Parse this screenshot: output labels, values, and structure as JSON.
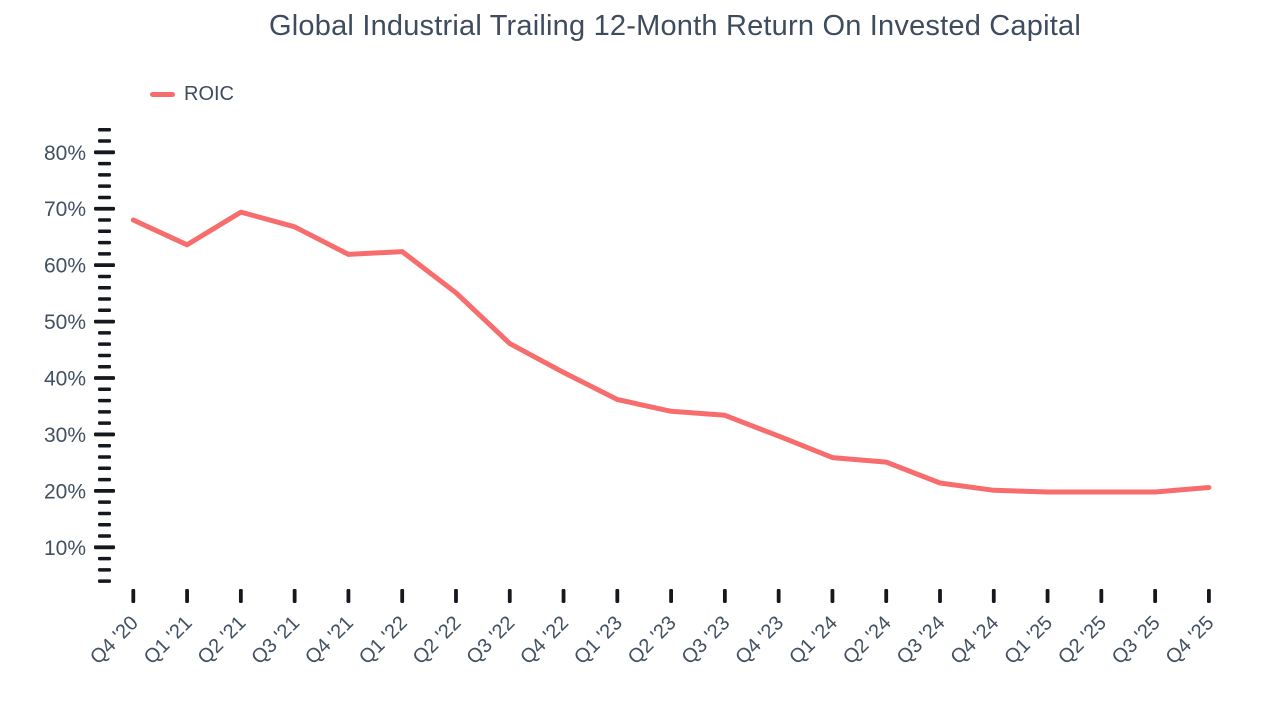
{
  "chart_data": {
    "type": "line",
    "title": "Global Industrial Trailing 12-Month Return On Invested Capital",
    "categories": [
      "Q4 '20",
      "Q1 '21",
      "Q2 '21",
      "Q3 '21",
      "Q4 '21",
      "Q1 '22",
      "Q2 '22",
      "Q3 '22",
      "Q4 '22",
      "Q1 '23",
      "Q2 '23",
      "Q3 '23",
      "Q4 '23",
      "Q1 '24",
      "Q2 '24",
      "Q3 '24",
      "Q4 '24",
      "Q1 '25",
      "Q2 '25",
      "Q3 '25",
      "Q4 '25"
    ],
    "series": [
      {
        "name": "ROIC",
        "color": "#f76d6d",
        "values": [
          68.0,
          63.6,
          69.4,
          66.8,
          61.9,
          62.4,
          55.1,
          46.1,
          41.0,
          36.2,
          34.1,
          33.4,
          29.7,
          25.9,
          25.1,
          21.4,
          20.1,
          19.8,
          19.8,
          19.8,
          20.6
        ]
      }
    ],
    "y_ticks": [
      {
        "value": 80,
        "label": "80%"
      },
      {
        "value": 70,
        "label": "70%"
      },
      {
        "value": 60,
        "label": "60%"
      },
      {
        "value": 50,
        "label": "50%"
      },
      {
        "value": 40,
        "label": "40%"
      },
      {
        "value": 30,
        "label": "30%"
      },
      {
        "value": 20,
        "label": "20%"
      },
      {
        "value": 10,
        "label": "10%"
      }
    ],
    "ylim": [
      4,
      84
    ],
    "minor_tick_step": 2,
    "grid": false,
    "legend_position": "top-left",
    "tick_color": "#15181d",
    "text_color": "#425062"
  }
}
